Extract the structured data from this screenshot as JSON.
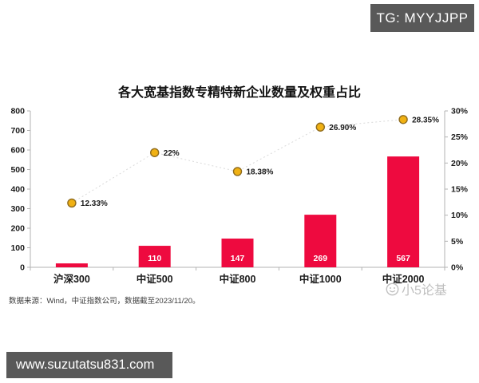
{
  "badge": {
    "label": "TG: MYYJJPP",
    "bg": "#595959"
  },
  "source_note": "数据来源：Wind，中证指数公司，数据截至2023/11/20。",
  "watermark": {
    "label": "小5论基",
    "icon": "smiley-icon"
  },
  "footer_bar": {
    "label": "www.suzutatsu831.com",
    "bg": "#595959"
  },
  "chart_data": {
    "type": "bar",
    "combo_with_line": true,
    "title": "各大宽基指数专精特新企业数量及权重占比",
    "categories": [
      "沪深300",
      "中证500",
      "中证800",
      "中证1000",
      "中证2000"
    ],
    "series": [
      {
        "id": "count-bars",
        "type": "bar",
        "axis": "left",
        "values": [
          20,
          110,
          147,
          269,
          567
        ],
        "bar_labels": [
          "",
          "110",
          "147",
          "269",
          "567"
        ],
        "color": "#ee0a3f"
      },
      {
        "id": "weight-line",
        "type": "line",
        "axis": "right",
        "values": [
          12.33,
          22,
          18.38,
          26.9,
          28.35
        ],
        "point_labels": [
          "12.33%",
          "22%",
          "18.38%",
          "26.90%",
          "28.35%"
        ],
        "line_color": "#d9d9d9",
        "line_style": "dotted",
        "marker_fill": "#f0b113",
        "marker_stroke": "#8f6b1d"
      }
    ],
    "left_axis": {
      "min": 0,
      "max": 800,
      "step": 100,
      "tick_labels": [
        "0",
        "100",
        "200",
        "300",
        "400",
        "500",
        "600",
        "700",
        "800"
      ]
    },
    "right_axis": {
      "min": 0,
      "max": 30,
      "step": 5,
      "tick_labels": [
        "0%",
        "5%",
        "10%",
        "15%",
        "20%",
        "25%",
        "30%"
      ]
    },
    "grid": false,
    "legend_position": "none",
    "axis_color": "#b3b3b3"
  }
}
